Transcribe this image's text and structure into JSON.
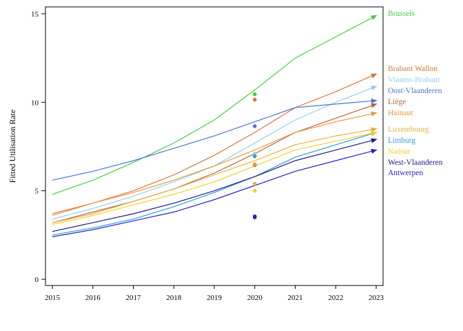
{
  "chart_data": {
    "type": "line",
    "title": "",
    "xlabel": "",
    "ylabel": "Fitted Utilisation Rate",
    "xlim": [
      2015,
      2023
    ],
    "ylim": [
      0,
      15
    ],
    "x_ticks": [
      2015,
      2016,
      2017,
      2018,
      2019,
      2020,
      2021,
      2022,
      2023
    ],
    "y_ticks": [
      0,
      5,
      10,
      15
    ],
    "grid": false,
    "legend_placement": "right",
    "series": [
      {
        "name": "Brussels",
        "color": "#44cc44",
        "values": [
          4.8,
          5.6,
          6.6,
          7.7,
          9.0,
          10.7,
          12.5,
          13.7,
          14.9
        ],
        "observed_2020": 10.45
      },
      {
        "name": "Brabant Wallon",
        "color": "#d9763a",
        "values": [
          3.7,
          4.3,
          5.0,
          5.9,
          7.0,
          8.3,
          9.7,
          10.6,
          11.6
        ],
        "observed_2020": 10.15
      },
      {
        "name": "Vlaams-Brabant",
        "color": "#8ecfef",
        "values": [
          3.4,
          4.0,
          4.7,
          5.5,
          6.4,
          7.7,
          9.0,
          10.0,
          10.9
        ],
        "observed_2020": 7.1
      },
      {
        "name": "Oost-Vlaanderen",
        "color": "#4d73d9",
        "values": [
          5.6,
          6.1,
          6.7,
          7.4,
          8.1,
          8.9,
          9.7,
          9.9,
          10.1
        ],
        "observed_2020": 8.65
      },
      {
        "name": "Liège",
        "color": "#b5653c",
        "values": [
          3.2,
          3.8,
          4.4,
          5.1,
          6.0,
          7.1,
          8.3,
          9.1,
          9.9
        ],
        "observed_2020": 6.45
      },
      {
        "name": "Hainaut",
        "color": "#f0963a",
        "values": [
          3.6,
          4.3,
          4.9,
          5.6,
          6.4,
          7.3,
          8.3,
          8.9,
          9.4
        ],
        "observed_2020": 6.5
      },
      {
        "name": "Luxembourg",
        "color": "#e6b040",
        "values": [
          3.2,
          3.7,
          4.4,
          5.1,
          5.9,
          6.7,
          7.6,
          8.1,
          8.5
        ],
        "observed_2020": 5.4
      },
      {
        "name": "Limburg",
        "color": "#2a9fd6",
        "values": [
          2.5,
          2.9,
          3.4,
          4.1,
          4.9,
          5.8,
          6.9,
          7.6,
          8.3
        ],
        "observed_2020": 6.95
      },
      {
        "name": "Namur",
        "color": "#f5d020",
        "values": [
          3.1,
          3.6,
          4.2,
          4.8,
          5.5,
          6.4,
          7.3,
          7.8,
          8.3
        ],
        "observed_2020": 5.0
      },
      {
        "name": "West-Vlaanderen",
        "color": "#1a1a8c",
        "values": [
          2.7,
          3.2,
          3.7,
          4.3,
          5.0,
          5.8,
          6.7,
          7.3,
          7.9
        ],
        "observed_2020": 3.55
      },
      {
        "name": "Antwerpen",
        "color": "#2222cc",
        "values": [
          2.4,
          2.8,
          3.3,
          3.8,
          4.5,
          5.3,
          6.1,
          6.7,
          7.3
        ],
        "observed_2020": 3.5
      }
    ]
  }
}
